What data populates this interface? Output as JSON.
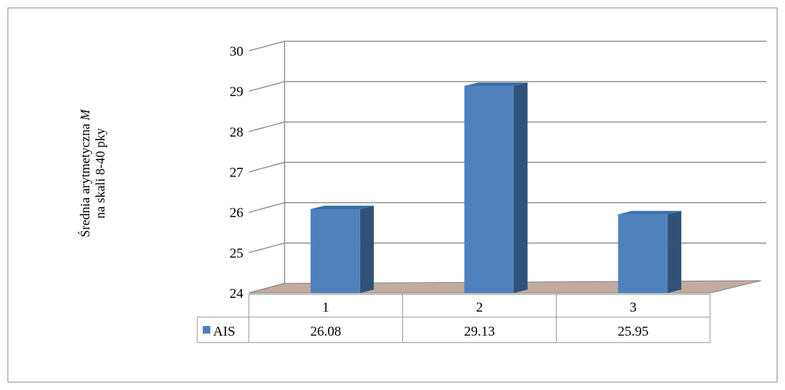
{
  "chart_data": {
    "type": "bar",
    "title": "",
    "categories": [
      "1",
      "2",
      "3"
    ],
    "series": [
      {
        "name": "AIS",
        "values": [
          26.08,
          29.13,
          25.95
        ]
      }
    ],
    "data_labels": [
      "26.08",
      "29.13",
      "25.95"
    ],
    "ylabel": [
      "Średnia arytmetyczna ",
      "M",
      "na skali 8-40 pky"
    ],
    "ylim": [
      24,
      30
    ],
    "yticks": [
      24,
      25,
      26,
      27,
      28,
      29,
      30
    ],
    "grid": true,
    "three_d": true,
    "legend_placement": "data-table",
    "colors": {
      "bar_front": "#4f81bd",
      "bar_side": "#2f5278",
      "bar_top": "#3d6ea5",
      "floor": "#c4ab9f",
      "grid": "#8c8c8c"
    }
  }
}
